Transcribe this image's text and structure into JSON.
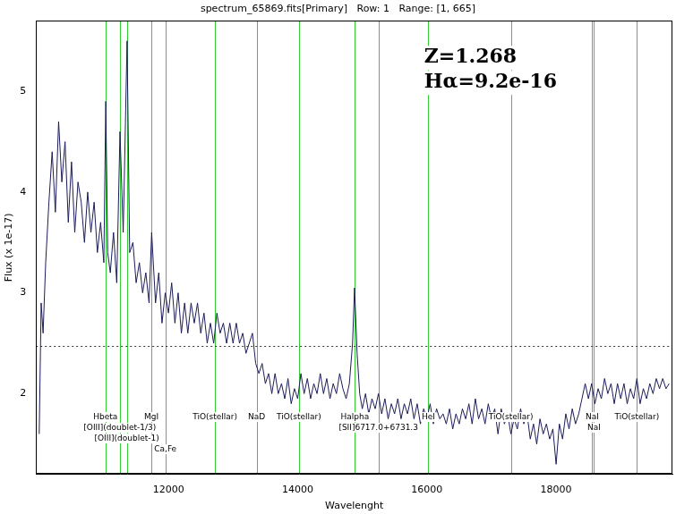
{
  "chart_data": {
    "type": "line",
    "title": "spectrum_65869.fits[Primary]   Row: 1   Range: [1, 665]",
    "x_label": "Wavelenght",
    "y_label": "Flux (x 1e-17)",
    "color": "#1c1c5a",
    "grid": false,
    "xlim": [
      9950,
      19800
    ],
    "ylim": [
      1.2,
      5.7
    ],
    "xticks": [
      12000,
      14000,
      16000,
      18000
    ],
    "yticks": [
      2,
      3,
      4,
      5
    ],
    "x": [
      10000,
      10030,
      10060,
      10100,
      10150,
      10200,
      10250,
      10300,
      10350,
      10400,
      10450,
      10500,
      10550,
      10600,
      10650,
      10700,
      10750,
      10800,
      10850,
      10900,
      10950,
      11000,
      11030,
      11060,
      11100,
      11150,
      11200,
      11250,
      11300,
      11360,
      11400,
      11450,
      11500,
      11550,
      11600,
      11650,
      11700,
      11740,
      11800,
      11850,
      11900,
      11950,
      12000,
      12050,
      12100,
      12150,
      12200,
      12250,
      12300,
      12350,
      12400,
      12450,
      12500,
      12550,
      12600,
      12650,
      12700,
      12750,
      12800,
      12850,
      12900,
      12950,
      13000,
      13050,
      13100,
      13150,
      13200,
      13250,
      13300,
      13350,
      13400,
      13450,
      13500,
      13550,
      13600,
      13650,
      13700,
      13750,
      13800,
      13850,
      13900,
      13950,
      14000,
      14050,
      14100,
      14150,
      14200,
      14250,
      14300,
      14350,
      14400,
      14450,
      14500,
      14550,
      14600,
      14650,
      14700,
      14750,
      14800,
      14850,
      14880,
      14920,
      14960,
      15000,
      15050,
      15100,
      15150,
      15200,
      15250,
      15300,
      15350,
      15400,
      15450,
      15500,
      15550,
      15600,
      15650,
      15700,
      15750,
      15800,
      15850,
      15900,
      15950,
      16000,
      16050,
      16100,
      16150,
      16200,
      16250,
      16300,
      16350,
      16400,
      16450,
      16500,
      16550,
      16600,
      16650,
      16700,
      16750,
      16800,
      16850,
      16900,
      16950,
      17000,
      17050,
      17100,
      17150,
      17200,
      17250,
      17300,
      17350,
      17400,
      17450,
      17500,
      17550,
      17600,
      17650,
      17700,
      17750,
      17800,
      17850,
      17900,
      17950,
      18000,
      18050,
      18100,
      18150,
      18200,
      18250,
      18300,
      18350,
      18400,
      18450,
      18500,
      18550,
      18600,
      18650,
      18700,
      18750,
      18800,
      18850,
      18900,
      18950,
      19000,
      19050,
      19100,
      19150,
      19200,
      19250,
      19300,
      19350,
      19400,
      19450,
      19500,
      19550,
      19600,
      19650,
      19700,
      19750
    ],
    "values": [
      1.6,
      2.9,
      2.6,
      3.3,
      3.9,
      4.4,
      3.8,
      4.7,
      4.1,
      4.5,
      3.7,
      4.3,
      3.6,
      4.1,
      3.9,
      3.5,
      4.0,
      3.6,
      3.9,
      3.4,
      3.7,
      3.3,
      4.9,
      3.4,
      3.2,
      3.6,
      3.1,
      4.6,
      3.6,
      5.5,
      3.4,
      3.5,
      3.1,
      3.3,
      3.0,
      3.2,
      2.9,
      3.6,
      2.9,
      3.2,
      2.7,
      3.0,
      2.8,
      3.1,
      2.7,
      3.0,
      2.6,
      2.9,
      2.6,
      2.9,
      2.7,
      2.9,
      2.6,
      2.8,
      2.5,
      2.7,
      2.5,
      2.8,
      2.6,
      2.7,
      2.5,
      2.7,
      2.5,
      2.7,
      2.5,
      2.6,
      2.4,
      2.5,
      2.6,
      2.3,
      2.2,
      2.3,
      2.1,
      2.2,
      2.0,
      2.2,
      2.0,
      2.1,
      1.95,
      2.15,
      1.9,
      2.05,
      1.95,
      2.2,
      2.0,
      2.15,
      1.95,
      2.1,
      2.0,
      2.2,
      2.0,
      2.15,
      1.95,
      2.1,
      2.0,
      2.2,
      2.05,
      1.95,
      2.1,
      2.5,
      3.05,
      2.4,
      2.0,
      1.85,
      2.0,
      1.8,
      1.95,
      1.85,
      2.0,
      1.8,
      1.95,
      1.75,
      1.9,
      1.8,
      1.95,
      1.75,
      1.9,
      1.8,
      1.95,
      1.75,
      1.9,
      1.7,
      1.85,
      1.75,
      1.9,
      1.7,
      1.85,
      1.75,
      1.8,
      1.7,
      1.85,
      1.65,
      1.8,
      1.7,
      1.85,
      1.75,
      1.9,
      1.7,
      1.95,
      1.75,
      1.85,
      1.7,
      1.9,
      1.75,
      1.85,
      1.6,
      1.85,
      1.7,
      1.8,
      1.6,
      1.75,
      1.65,
      1.85,
      1.7,
      1.8,
      1.55,
      1.7,
      1.5,
      1.75,
      1.6,
      1.7,
      1.55,
      1.65,
      1.3,
      1.7,
      1.55,
      1.8,
      1.65,
      1.85,
      1.7,
      1.8,
      1.95,
      2.1,
      1.95,
      2.1,
      1.9,
      2.05,
      1.95,
      2.15,
      2.0,
      2.1,
      1.9,
      2.1,
      1.95,
      2.1,
      1.9,
      2.05,
      1.95,
      2.15,
      1.9,
      2.05,
      1.95,
      2.1,
      2.0,
      2.15,
      2.05,
      2.15,
      2.05,
      2.1
    ],
    "reference_line": {
      "y": 2.47,
      "line_style": "dotted",
      "color": "#333333"
    },
    "lines": [
      {
        "x": 11025,
        "label": "Hbeta",
        "color": "#33cc33"
      },
      {
        "x": 11247,
        "label": "[OIII](doublet-1/3)",
        "color": "#33cc33"
      },
      {
        "x": 11356,
        "label": "[OIII](doublet-1)",
        "color": "#33cc33"
      },
      {
        "x": 11737,
        "label": "MgI",
        "color": "#33cc33"
      },
      {
        "x": 11952,
        "label": "Ca,Fe",
        "color": "#33cc33"
      },
      {
        "x": 12720,
        "label": "TiO(stellar)",
        "color": "#33cc33"
      },
      {
        "x": 13365,
        "label": "NaD",
        "color": "#33cc33"
      },
      {
        "x": 14020,
        "label": "TiO(stellar)",
        "color": "#33cc33"
      },
      {
        "x": 14885,
        "label": "Halpha",
        "color": "#33cc33"
      },
      {
        "x": 15250,
        "label": "[SII]6717.0+6731.3",
        "color": "#33cc33"
      },
      {
        "x": 16023,
        "label": "HeI",
        "color": "#33cc33"
      },
      {
        "x": 17300,
        "label": "TiO(stellar)",
        "color": "#33cc33"
      },
      {
        "x": 18559,
        "label": "NaI",
        "color": "#33cc33"
      },
      {
        "x": 18586,
        "label": "NaI",
        "color": "#33cc33"
      },
      {
        "x": 19250,
        "label": "TiO(stellar)",
        "color": "#33cc33"
      }
    ],
    "annotations": [
      "Z=1.268",
      "Hα=9.2e-16"
    ]
  }
}
